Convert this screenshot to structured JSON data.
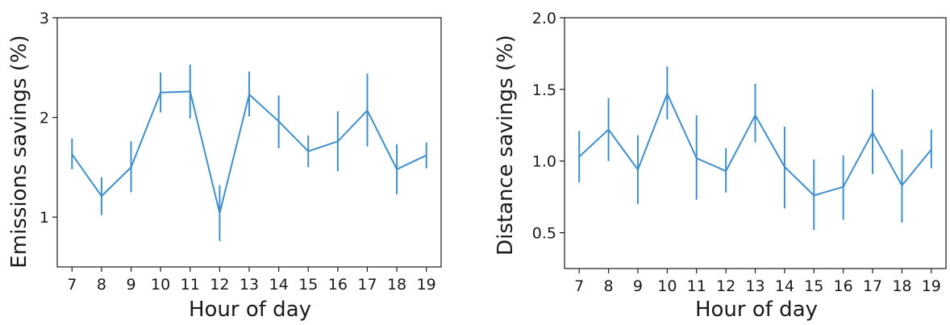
{
  "colors": {
    "series": "#3f8fcc",
    "axis": "#1a1a1a"
  },
  "chart_data": [
    {
      "type": "line",
      "xlabel": "Hour of day",
      "ylabel": "Emissions savings (%)",
      "x": [
        7,
        8,
        9,
        10,
        11,
        12,
        13,
        14,
        15,
        16,
        17,
        18,
        19
      ],
      "xticks": [
        "7",
        "8",
        "9",
        "10",
        "11",
        "12",
        "13",
        "14",
        "15",
        "16",
        "17",
        "18",
        "19"
      ],
      "yticks": [
        {
          "value": 1,
          "label": "1"
        },
        {
          "value": 2,
          "label": "2"
        },
        {
          "value": 3,
          "label": "3"
        }
      ],
      "ylim": [
        0.5,
        3.0
      ],
      "xlim": [
        6.5,
        19.5
      ],
      "grid": false,
      "series": [
        {
          "values": [
            1.63,
            1.21,
            1.5,
            2.25,
            2.26,
            1.04,
            2.23,
            1.96,
            1.66,
            1.76,
            2.07,
            1.48,
            1.62
          ],
          "error_low": [
            1.48,
            1.02,
            1.25,
            2.05,
            1.99,
            0.76,
            2.01,
            1.69,
            1.5,
            1.46,
            1.71,
            1.23,
            1.49
          ],
          "error_high": [
            1.79,
            1.4,
            1.76,
            2.45,
            2.53,
            1.32,
            2.46,
            2.22,
            1.82,
            2.06,
            2.44,
            1.73,
            1.75
          ]
        }
      ]
    },
    {
      "type": "line",
      "xlabel": "Hour of day",
      "ylabel": "Distance savings (%)",
      "x": [
        7,
        8,
        9,
        10,
        11,
        12,
        13,
        14,
        15,
        16,
        17,
        18,
        19
      ],
      "xticks": [
        "7",
        "8",
        "9",
        "10",
        "11",
        "12",
        "13",
        "14",
        "15",
        "16",
        "17",
        "18",
        "19"
      ],
      "yticks": [
        {
          "value": 0.5,
          "label": "0.5"
        },
        {
          "value": 1.0,
          "label": "1.0"
        },
        {
          "value": 1.5,
          "label": "1.5"
        },
        {
          "value": 2.0,
          "label": "2.0"
        }
      ],
      "ylim": [
        0.25,
        2.0
      ],
      "xlim": [
        6.5,
        19.5
      ],
      "grid": false,
      "series": [
        {
          "values": [
            1.03,
            1.22,
            0.94,
            1.47,
            1.02,
            0.93,
            1.32,
            0.96,
            0.76,
            0.82,
            1.2,
            0.83,
            1.08
          ],
          "error_low": [
            0.85,
            1.0,
            0.7,
            1.29,
            0.73,
            0.78,
            1.13,
            0.67,
            0.52,
            0.59,
            0.91,
            0.57,
            0.95
          ],
          "error_high": [
            1.21,
            1.44,
            1.18,
            1.66,
            1.32,
            1.09,
            1.54,
            1.24,
            1.01,
            1.04,
            1.5,
            1.08,
            1.22
          ]
        }
      ]
    }
  ]
}
